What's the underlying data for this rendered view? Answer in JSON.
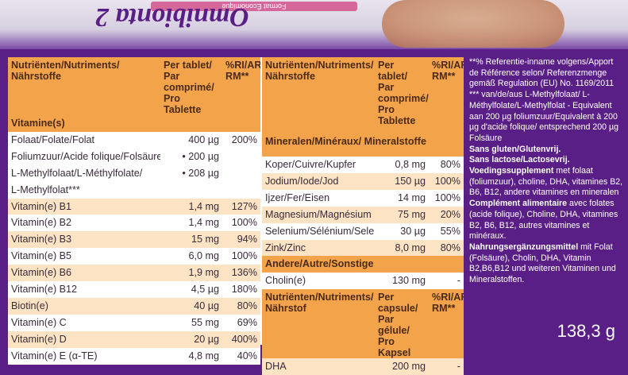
{
  "brand": {
    "flipped_name": "Omnibionta 2",
    "flipped_sub": "Format Économique"
  },
  "table_left": {
    "header": [
      "Nutriënten/Nutriments/ Nährstoffe",
      "Per tablet/ Par comprimé/ Pro Tablette",
      "%RI/AR/ RM**"
    ],
    "section": "Vitamine(s)",
    "rows": [
      [
        "Folaat/Folate/Folat",
        "400 µg",
        "200%"
      ],
      [
        "Foliumzuur/Acide folique/Folsäure",
        "• 200 µg",
        ""
      ],
      [
        "L-Methylfolaat/L-Méthylfolate/",
        "• 208 µg",
        ""
      ],
      [
        "L-Methylfolat***",
        "",
        ""
      ],
      [
        "Vitamin(e) B1",
        "1,4 mg",
        "127%"
      ],
      [
        "Vitamin(e) B2",
        "1,4 mg",
        "100%"
      ],
      [
        "Vitamin(e) B3",
        "15 mg",
        "94%"
      ],
      [
        "Vitamin(e) B5",
        "6,0 mg",
        "100%"
      ],
      [
        "Vitamin(e) B6",
        "1,9 mg",
        "136%"
      ],
      [
        "Vitamin(e) B12",
        "4,5 µg",
        "180%"
      ],
      [
        "Biotin(e)",
        "40 µg",
        "80%"
      ],
      [
        "Vitamin(e) C",
        "55 mg",
        "69%"
      ],
      [
        "Vitamin(e) D",
        "20 µg",
        "400%"
      ],
      [
        "Vitamin(e) E (α-TE)",
        "4,8 mg",
        "40%"
      ]
    ]
  },
  "table_right": {
    "header": [
      "Nutriënten/Nutriments/ Nährstoffe",
      "Per tablet/ Par comprimé/ Pro Tablette",
      "%RI/AR/ RM**"
    ],
    "section1": "Mineralen/Minéraux/ Mineralstoffe",
    "rows1": [
      [
        "Koper/Cuivre/Kupfer",
        "0,8 mg",
        "80%"
      ],
      [
        "Jodium/Iode/Jod",
        "150 µg",
        "100%"
      ],
      [
        "Ijzer/Fer/Eisen",
        "14 mg",
        "100%"
      ],
      [
        "Magnesium/Magnésium",
        "75 mg",
        "20%"
      ],
      [
        "Selenium/Sélénium/Selen",
        "30 µg",
        "55%"
      ],
      [
        "Zink/Zinc",
        "8,0 mg",
        "80%"
      ]
    ],
    "section2": "Andere/Autre/Sonstige",
    "rows2": [
      [
        "Cholin(e)",
        "130 mg",
        "-"
      ]
    ],
    "header2": [
      "Nutriënten/Nutriments/ Nährstof",
      "Per capsule/ Par gélule/ Pro Kapsel",
      "%RI/AR/ RM**"
    ],
    "rows3": [
      [
        "DHA",
        "200 mg",
        "-"
      ]
    ]
  },
  "notes": {
    "ref": "**% Referentie-inname volgens/Apport de Référence selon/ Referenzmenge gemäß Regulation (EU) No. 1169/2011",
    "methyl": "*** van/de/aus L-Methylfolaat/ L-Méthylfolate/L-Methylfolat - Equivalent aan 200 µg foliumzuur/Equivalent à 200 µg d'acide folique/ entsprechend 200 µg Folsäure",
    "gluten": "Sans gluten/Glutenvrij.",
    "lactose": "Sans lactose/Lactosevrij.",
    "nl_bold": "Voedingssupplement",
    "nl": " met folaat (foliumzuur), choline, DHA, vitamines B2, B6, B12, andere vitamines en mineralen",
    "fr_bold": "Complément alimentaire",
    "fr": " avec folates (acide folique), Choline, DHA, vitamines B2, B6, B12, autres vitamines et minéraux.",
    "de_bold": "Nahrungsergänzungsmittel",
    "de": " mit Folat (Folsäure), Cholin, DHA, Vitamin B2,B6,B12 und weiteren Vitaminen und Mineralstoffen."
  },
  "net_weight": "138,3 g"
}
